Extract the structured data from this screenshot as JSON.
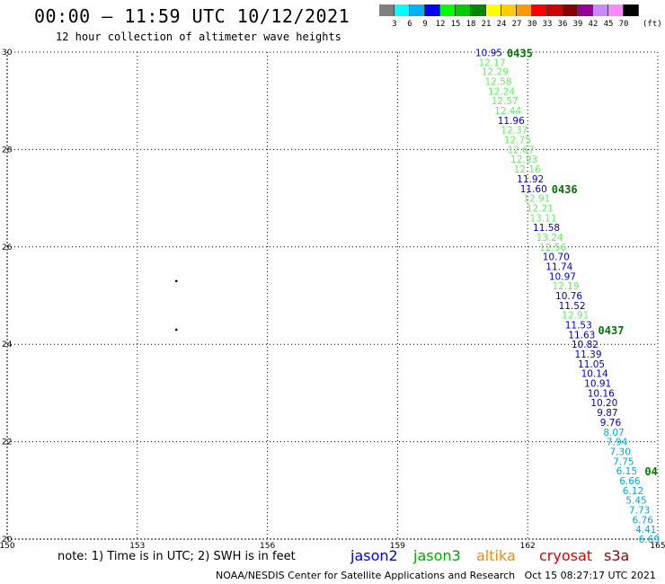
{
  "header": {
    "title": "00:00 – 11:59 UTC 10/12/2021",
    "subtitle": "12 hour collection of altimeter wave heights"
  },
  "legend": {
    "colors": [
      "#808080",
      "#00ffff",
      "#00b0ff",
      "#0000ff",
      "#00ff00",
      "#00cc00",
      "#008800",
      "#ffff00",
      "#ffcc00",
      "#ff9900",
      "#ff0000",
      "#cc0000",
      "#880000",
      "#990099",
      "#cc88ff",
      "#ff88ff",
      "#000000"
    ],
    "labels": [
      "3",
      "6",
      "9",
      "12",
      "15",
      "18",
      "21",
      "24",
      "27",
      "30",
      "33",
      "36",
      "39",
      "42",
      "45",
      "70"
    ],
    "unit": "(ft)"
  },
  "axes": {
    "lon_labels": [
      "150",
      "153",
      "156",
      "159",
      "162",
      "165"
    ],
    "lat_labels": [
      "20",
      "22",
      "24",
      "26",
      "28",
      "30"
    ],
    "lon_range": [
      150,
      165
    ],
    "lat_range": [
      20,
      30
    ]
  },
  "points": [
    {
      "lat": 29.99,
      "val": "10.95",
      "c": "#0000cc"
    },
    {
      "lat": 29.79,
      "val": "12.17",
      "c": "#66ee66"
    },
    {
      "lat": 29.6,
      "val": "12.29",
      "c": "#66ee66"
    },
    {
      "lat": 29.4,
      "val": "12.58",
      "c": "#66ee66"
    },
    {
      "lat": 29.2,
      "val": "12.24",
      "c": "#66ee66"
    },
    {
      "lat": 29.0,
      "val": "12.57",
      "c": "#66ee66"
    },
    {
      "lat": 28.8,
      "val": "12.44",
      "c": "#66ee66"
    },
    {
      "lat": 28.6,
      "val": "11.96",
      "c": "#0000cc"
    },
    {
      "lat": 28.4,
      "val": "12.37",
      "c": "#66ee66"
    },
    {
      "lat": 28.2,
      "val": "12.75",
      "c": "#66ee66"
    },
    {
      "lat": 28.0,
      "val": "12.67",
      "c": "#66ee66"
    },
    {
      "lat": 27.8,
      "val": "12.93",
      "c": "#66ee66"
    },
    {
      "lat": 27.6,
      "val": "12.16",
      "c": "#66ee66"
    },
    {
      "lat": 27.4,
      "val": "11.92",
      "c": "#0000cc"
    },
    {
      "lat": 27.2,
      "val": "11.60",
      "c": "#0000cc"
    },
    {
      "lat": 27.0,
      "val": "12.91",
      "c": "#66ee66"
    },
    {
      "lat": 26.8,
      "val": "12.21",
      "c": "#66ee66"
    },
    {
      "lat": 26.6,
      "val": "13.11",
      "c": "#66ee66"
    },
    {
      "lat": 26.4,
      "val": "11.58",
      "c": "#0000cc"
    },
    {
      "lat": 26.2,
      "val": "13.24",
      "c": "#66ee66"
    },
    {
      "lat": 26.0,
      "val": "12.56",
      "c": "#66ee66"
    },
    {
      "lat": 25.8,
      "val": "10.70",
      "c": "#0000cc"
    },
    {
      "lat": 25.6,
      "val": "11.74",
      "c": "#0000cc"
    },
    {
      "lat": 25.4,
      "val": "10.97",
      "c": "#0000cc"
    },
    {
      "lat": 25.2,
      "val": "12.19",
      "c": "#66ee66"
    },
    {
      "lat": 25.0,
      "val": "10.76",
      "c": "#0000cc"
    },
    {
      "lat": 24.8,
      "val": "11.52",
      "c": "#0000cc"
    },
    {
      "lat": 24.6,
      "val": "12.91",
      "c": "#66ee66"
    },
    {
      "lat": 24.4,
      "val": "11.53",
      "c": "#0000cc"
    },
    {
      "lat": 24.2,
      "val": "11.63",
      "c": "#0000cc"
    },
    {
      "lat": 24.0,
      "val": "10.82",
      "c": "#0000cc"
    },
    {
      "lat": 23.8,
      "val": "11.39",
      "c": "#0000cc"
    },
    {
      "lat": 23.6,
      "val": "11.05",
      "c": "#0000cc"
    },
    {
      "lat": 23.4,
      "val": "10.14",
      "c": "#0000cc"
    },
    {
      "lat": 23.2,
      "val": "10.91",
      "c": "#0000cc"
    },
    {
      "lat": 23.0,
      "val": "10.16",
      "c": "#0000cc"
    },
    {
      "lat": 22.8,
      "val": "10.20",
      "c": "#0000cc"
    },
    {
      "lat": 22.6,
      "val": "9.87",
      "c": "#0000cc"
    },
    {
      "lat": 22.4,
      "val": "9.76",
      "c": "#0000cc"
    },
    {
      "lat": 22.2,
      "val": "8.07",
      "c": "#00aadd"
    },
    {
      "lat": 22.0,
      "val": "7.94",
      "c": "#00aadd"
    },
    {
      "lat": 21.8,
      "val": "7.30",
      "c": "#00aadd"
    },
    {
      "lat": 21.6,
      "val": "7.75",
      "c": "#00aadd"
    },
    {
      "lat": 21.4,
      "val": "6.15",
      "c": "#00aadd"
    },
    {
      "lat": 21.2,
      "val": "6.66",
      "c": "#00aadd"
    },
    {
      "lat": 21.0,
      "val": "6.12",
      "c": "#00aadd"
    },
    {
      "lat": 20.8,
      "val": "5.45",
      "c": "#00aadd"
    },
    {
      "lat": 20.6,
      "val": "7.73",
      "c": "#00aadd"
    },
    {
      "lat": 20.4,
      "val": "6.76",
      "c": "#00aadd"
    },
    {
      "lat": 20.2,
      "val": "4.41",
      "c": "#00aadd"
    },
    {
      "lat": 20.0,
      "val": "6.69",
      "c": "#00aadd"
    }
  ],
  "time_labels": [
    {
      "lat": 29.99,
      "text": "0435"
    },
    {
      "lat": 27.2,
      "text": "0436"
    },
    {
      "lat": 24.3,
      "text": "0437"
    },
    {
      "lat": 21.4,
      "text": "04"
    }
  ],
  "islands": [
    {
      "lon": 153.9,
      "lat": 25.3
    },
    {
      "lon": 153.9,
      "lat": 24.3
    }
  ],
  "notes": {
    "note": "note: 1) Time is in UTC; 2) SWH is in feet",
    "sats": [
      {
        "name": "jason2",
        "color": "#0000ee"
      },
      {
        "name": "jason3",
        "color": "#00aa00"
      },
      {
        "name": "altika",
        "color": "#ff8800"
      },
      {
        "name": "cryosat",
        "color": "#dd0000"
      },
      {
        "name": "s3a",
        "color": "#990000"
      }
    ],
    "credit": "NOAA/NESDIS Center for Satellite Applications and Research   Oct 15 08:27:17 UTC 2021"
  }
}
